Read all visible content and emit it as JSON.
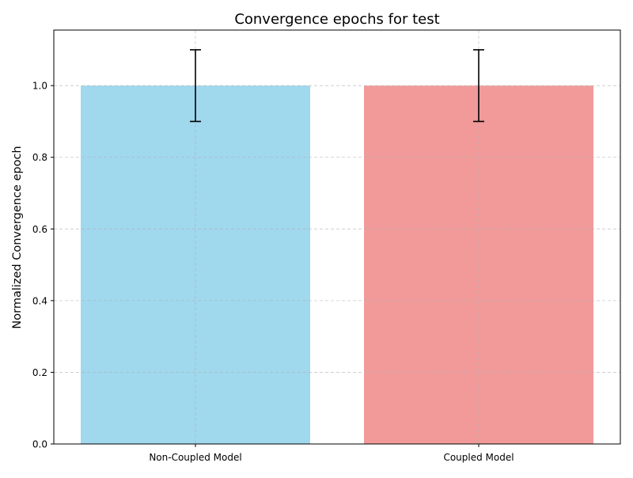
{
  "chart_data": {
    "type": "bar",
    "title": "Convergence epochs for test",
    "xlabel": "",
    "ylabel": "Normalized Convergence epoch",
    "categories": [
      "Non-Coupled Model",
      "Coupled Model"
    ],
    "values": [
      1.0,
      1.0
    ],
    "error": [
      0.1,
      0.1
    ],
    "colors": [
      "#a0d8ee",
      "#f29a9a"
    ],
    "ylim": [
      0,
      1.155
    ],
    "yticks": [
      0.0,
      0.2,
      0.4,
      0.6,
      0.8,
      1.0
    ],
    "ytick_labels": [
      "0.0",
      "0.2",
      "0.4",
      "0.6",
      "0.8",
      "1.0"
    ],
    "grid": true,
    "grid_style": "dashed",
    "legend": "none"
  }
}
